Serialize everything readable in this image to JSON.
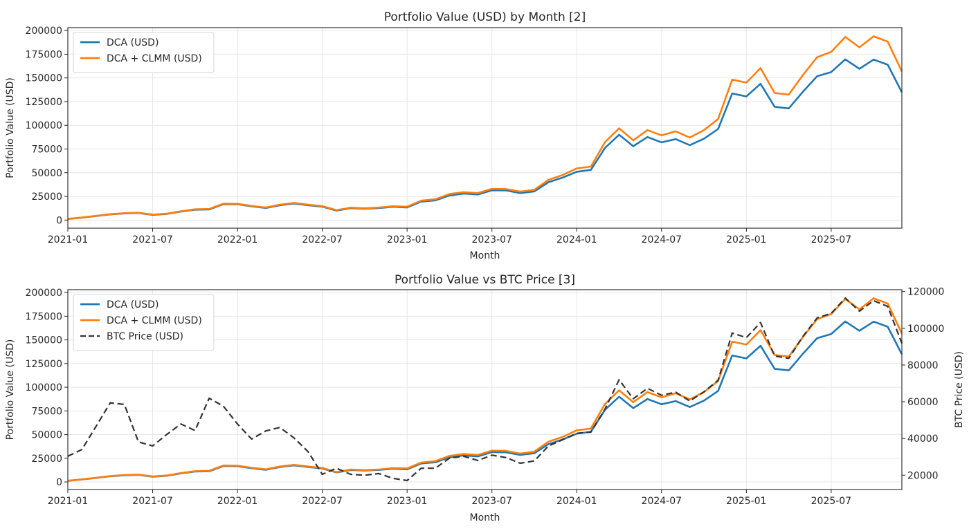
{
  "chart_data": [
    {
      "type": "line",
      "title": "Portfolio Value (USD) by Month [2]",
      "xlabel": "Month",
      "ylabel": "Portfolio Value (USD)",
      "ylim": [
        -8500,
        203000
      ],
      "yticks": [
        0,
        25000,
        50000,
        75000,
        100000,
        125000,
        150000,
        175000,
        200000
      ],
      "xtick_labels": [
        "2021-01",
        "2021-07",
        "2022-01",
        "2022-07",
        "2023-01",
        "2023-07",
        "2024-01",
        "2024-07",
        "2025-01",
        "2025-07"
      ],
      "xtick_month_index": [
        0,
        6,
        12,
        18,
        24,
        30,
        36,
        42,
        48,
        54
      ],
      "x_start": "2021-01",
      "x_end": "2025-12",
      "grid": true,
      "legend_position": "upper-left",
      "series": [
        {
          "name": "DCA (USD)",
          "color": "#1f77b4",
          "style": "solid",
          "values": [
            1200,
            2600,
            4300,
            6000,
            7000,
            7500,
            5500,
            6500,
            9000,
            11000,
            11300,
            16800,
            16700,
            14500,
            12800,
            15700,
            17500,
            15700,
            14200,
            10000,
            12600,
            12000,
            12700,
            14000,
            13300,
            19500,
            20800,
            26000,
            28000,
            27000,
            31500,
            31300,
            28500,
            30300,
            40000,
            44800,
            51000,
            53000,
            76200,
            90000,
            77900,
            87600,
            82000,
            85400,
            79100,
            85900,
            96100,
            133600,
            130400,
            143800,
            119500,
            117800,
            135300,
            151800,
            156200,
            169500,
            159600,
            169300,
            163900,
            134800
          ]
        },
        {
          "name": "DCA + CLMM (USD)",
          "color": "#ff7f0e",
          "style": "solid",
          "values": [
            1300,
            2700,
            4500,
            6200,
            7300,
            7800,
            5800,
            6800,
            9400,
            11400,
            11800,
            17300,
            17200,
            15000,
            13300,
            16300,
            18100,
            16300,
            14800,
            10500,
            13100,
            12500,
            13200,
            14600,
            14200,
            20500,
            22000,
            27500,
            29500,
            28500,
            33000,
            32800,
            30000,
            32000,
            42500,
            47500,
            54500,
            56400,
            82300,
            96800,
            84200,
            94900,
            89400,
            93700,
            87100,
            94900,
            106600,
            148200,
            145000,
            160300,
            134100,
            132400,
            153000,
            171800,
            177400,
            193200,
            182200,
            193900,
            188300,
            156700
          ]
        }
      ]
    },
    {
      "type": "line",
      "title": "Portfolio Value vs BTC Price [3]",
      "xlabel": "Month",
      "ylabel": "Portfolio Value (USD)",
      "ylabel_right": "BTC Price (USD)",
      "ylim": [
        -8000,
        203000
      ],
      "ylim_right": [
        12200,
        121000
      ],
      "yticks": [
        0,
        25000,
        50000,
        75000,
        100000,
        125000,
        150000,
        175000,
        200000
      ],
      "yticks_right": [
        20000,
        40000,
        60000,
        80000,
        100000,
        120000
      ],
      "xtick_labels": [
        "2021-01",
        "2021-07",
        "2022-01",
        "2022-07",
        "2023-01",
        "2023-07",
        "2024-01",
        "2024-07",
        "2025-01",
        "2025-07"
      ],
      "xtick_month_index": [
        0,
        6,
        12,
        18,
        24,
        30,
        36,
        42,
        48,
        54
      ],
      "x_start": "2021-01",
      "x_end": "2025-12",
      "grid": true,
      "legend_position": "upper-left",
      "series": [
        {
          "name": "DCA (USD)",
          "color": "#1f77b4",
          "style": "solid",
          "axis": "left",
          "values": [
            1200,
            2600,
            4300,
            6000,
            7000,
            7500,
            5500,
            6500,
            9000,
            11000,
            11300,
            16800,
            16700,
            14500,
            12800,
            15700,
            17500,
            15700,
            14200,
            10000,
            12600,
            12000,
            12700,
            14000,
            13300,
            19500,
            20800,
            26000,
            28000,
            27000,
            31500,
            31300,
            28500,
            30300,
            40000,
            44800,
            51000,
            53000,
            76200,
            90000,
            77900,
            87600,
            82000,
            85400,
            79100,
            85900,
            96100,
            133600,
            130400,
            143800,
            119500,
            117800,
            135300,
            151800,
            156200,
            169500,
            159600,
            169300,
            163900,
            134800
          ]
        },
        {
          "name": "DCA + CLMM (USD)",
          "color": "#ff7f0e",
          "style": "solid",
          "axis": "left",
          "values": [
            1300,
            2700,
            4500,
            6200,
            7300,
            7800,
            5800,
            6800,
            9400,
            11400,
            11800,
            17300,
            17200,
            15000,
            13300,
            16300,
            18100,
            16300,
            14800,
            10500,
            13100,
            12500,
            13200,
            14600,
            14200,
            20500,
            22000,
            27500,
            29500,
            28500,
            33000,
            32800,
            30000,
            32000,
            42500,
            47500,
            54500,
            56400,
            82300,
            96800,
            84200,
            94900,
            89400,
            93700,
            87100,
            94900,
            106600,
            148200,
            145000,
            160300,
            134100,
            132400,
            153000,
            171800,
            177400,
            193200,
            182200,
            193900,
            188300,
            156700
          ]
        },
        {
          "name": "BTC Price (USD)",
          "color": "#333333",
          "style": "dashed",
          "axis": "right",
          "values": [
            30300,
            34000,
            46600,
            59400,
            58500,
            38100,
            35900,
            42200,
            47900,
            44300,
            61900,
            57600,
            47900,
            39700,
            44100,
            46000,
            40300,
            32800,
            20500,
            23800,
            20500,
            20000,
            20900,
            18300,
            17100,
            23800,
            23800,
            29300,
            30300,
            28000,
            30900,
            29600,
            26500,
            27800,
            35900,
            39300,
            42800,
            43500,
            56000,
            72000,
            61600,
            67300,
            63500,
            65200,
            60400,
            65400,
            71700,
            97400,
            94900,
            103100,
            84900,
            83600,
            95500,
            105600,
            108100,
            116500,
            109300,
            115000,
            111900,
            91800
          ]
        }
      ]
    }
  ]
}
